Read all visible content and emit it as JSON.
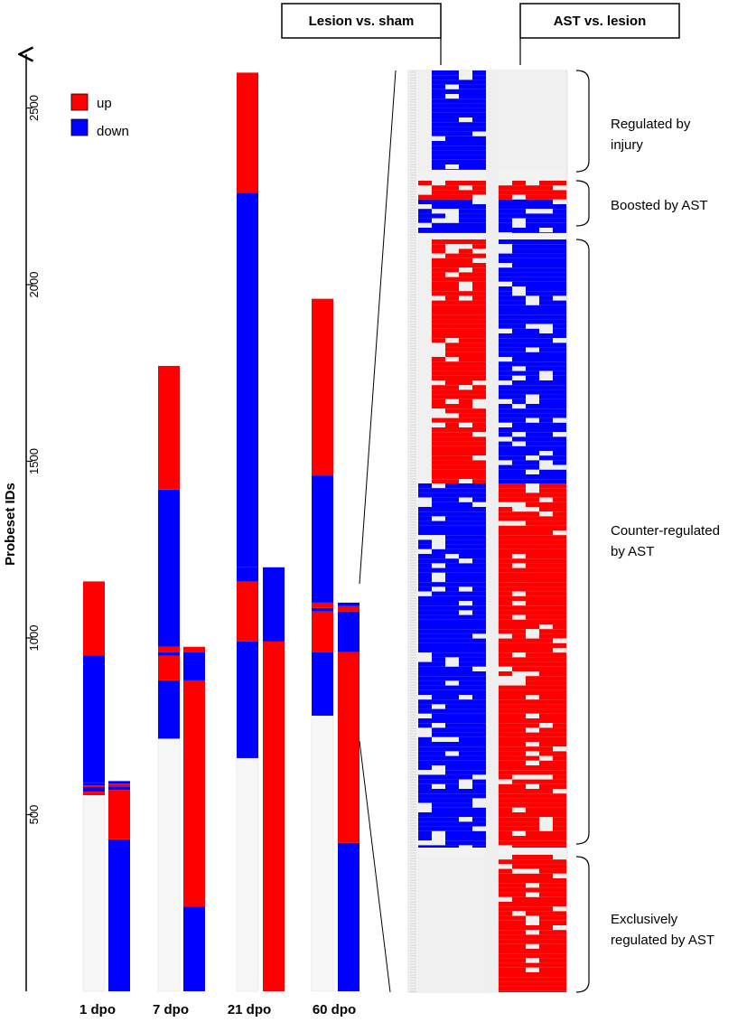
{
  "chart_data": {
    "type": "bar",
    "subtype": "stacked-bar-with-heatmap",
    "ylabel": "Probeset IDs",
    "ylim": [
      0,
      2600
    ],
    "yticks": [
      "500",
      "1000",
      "1500",
      "2000",
      "2500"
    ],
    "legend": [
      {
        "label": "up",
        "color": "#ff0000"
      },
      {
        "label": "down",
        "color": "#0000ff"
      }
    ],
    "categories": [
      "1 dpo",
      "7 dpo",
      "21 dpo",
      "60 dpo"
    ],
    "series": [
      {
        "name": "Lesion vs. sham",
        "timepoints": [
          {
            "label": "1 dpo",
            "segments": [
              {
                "dir": "none",
                "from": 0,
                "to": 555
              },
              {
                "dir": "up",
                "from": 555,
                "to": 565
              },
              {
                "dir": "down",
                "from": 565,
                "to": 578
              },
              {
                "dir": "up",
                "from": 578,
                "to": 583
              },
              {
                "dir": "down",
                "from": 583,
                "to": 590
              },
              {
                "dir": "down",
                "from": 590,
                "to": 950
              },
              {
                "dir": "up",
                "from": 950,
                "to": 1160
              }
            ]
          },
          {
            "label": "7 dpo",
            "segments": [
              {
                "dir": "none",
                "from": 0,
                "to": 715
              },
              {
                "dir": "down",
                "from": 715,
                "to": 880
              },
              {
                "dir": "up",
                "from": 880,
                "to": 950
              },
              {
                "dir": "down",
                "from": 950,
                "to": 960
              },
              {
                "dir": "up",
                "from": 960,
                "to": 975
              },
              {
                "dir": "down",
                "from": 975,
                "to": 1420
              },
              {
                "dir": "up",
                "from": 1420,
                "to": 1770
              }
            ]
          },
          {
            "label": "21 dpo",
            "segments": [
              {
                "dir": "none",
                "from": 0,
                "to": 660
              },
              {
                "dir": "down",
                "from": 660,
                "to": 990
              },
              {
                "dir": "up",
                "from": 990,
                "to": 1160
              },
              {
                "dir": "down",
                "from": 1160,
                "to": 1200
              },
              {
                "dir": "down",
                "from": 1200,
                "to": 2260
              },
              {
                "dir": "up",
                "from": 2260,
                "to": 2600
              }
            ]
          },
          {
            "label": "60 dpo",
            "segments": [
              {
                "dir": "none",
                "from": 0,
                "to": 780
              },
              {
                "dir": "down",
                "from": 780,
                "to": 960
              },
              {
                "dir": "up",
                "from": 960,
                "to": 1075
              },
              {
                "dir": "down",
                "from": 1075,
                "to": 1085
              },
              {
                "dir": "up",
                "from": 1085,
                "to": 1100
              },
              {
                "dir": "down",
                "from": 1100,
                "to": 1460
              },
              {
                "dir": "up",
                "from": 1460,
                "to": 1960
              }
            ]
          }
        ]
      },
      {
        "name": "AST vs. lesion",
        "timepoints": [
          {
            "label": "1 dpo",
            "segments": [
              {
                "dir": "down",
                "from": 0,
                "to": 430
              },
              {
                "dir": "up",
                "from": 430,
                "to": 570
              },
              {
                "dir": "down",
                "from": 570,
                "to": 580
              },
              {
                "dir": "up",
                "from": 580,
                "to": 588
              },
              {
                "dir": "down",
                "from": 588,
                "to": 595
              }
            ]
          },
          {
            "label": "7 dpo",
            "segments": [
              {
                "dir": "down",
                "from": 0,
                "to": 240
              },
              {
                "dir": "up",
                "from": 240,
                "to": 880
              },
              {
                "dir": "down",
                "from": 880,
                "to": 960
              },
              {
                "dir": "up",
                "from": 960,
                "to": 975
              }
            ]
          },
          {
            "label": "21 dpo",
            "segments": [
              {
                "dir": "up",
                "from": 0,
                "to": 990
              },
              {
                "dir": "down",
                "from": 990,
                "to": 1200
              }
            ]
          },
          {
            "label": "60 dpo",
            "segments": [
              {
                "dir": "down",
                "from": 0,
                "to": 420
              },
              {
                "dir": "up",
                "from": 420,
                "to": 960
              },
              {
                "dir": "down",
                "from": 960,
                "to": 1075
              },
              {
                "dir": "up",
                "from": 1075,
                "to": 1090
              },
              {
                "dir": "down",
                "from": 1090,
                "to": 1100
              }
            ]
          }
        ]
      }
    ],
    "heatmap": {
      "source": "60 dpo",
      "column_headers": [
        "Lesion vs. sham",
        "AST vs. lesion"
      ],
      "groups": [
        {
          "label_lines": [
            "Regulated by",
            "injury"
          ],
          "rows": 30,
          "lesion": "down",
          "ast": "none"
        },
        {
          "label_lines": [
            "Boosted by AST"
          ],
          "rows": 14,
          "lesion": "mixed",
          "ast": "mixed"
        },
        {
          "label_lines": [
            "Counter-regulated",
            "by AST"
          ],
          "rows": 160,
          "lesion": "up-then-down",
          "ast": "down-then-up"
        },
        {
          "label_lines": [
            "Exclusively",
            "regulated by AST"
          ],
          "rows": 36,
          "lesion": "none",
          "ast": "up"
        }
      ]
    }
  }
}
